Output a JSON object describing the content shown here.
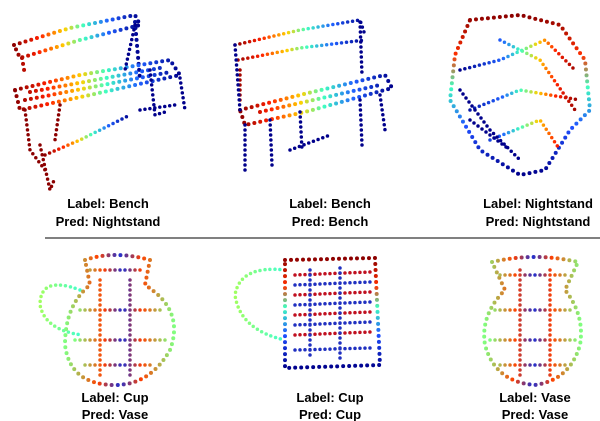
{
  "panels": [
    {
      "label": "Label: Bench",
      "pred": "Pred: Nightstand"
    },
    {
      "label": "Label: Bench",
      "pred": "Pred: Bench"
    },
    {
      "label": "Label: Nightstand",
      "pred": "Pred: Nightstand"
    },
    {
      "label": "Label: Cup",
      "pred": "Pred: Vase"
    },
    {
      "label": "Label: Cup",
      "pred": "Pred: Cup"
    },
    {
      "label": "Label: Vase",
      "pred": "Pred: Vase"
    }
  ]
}
